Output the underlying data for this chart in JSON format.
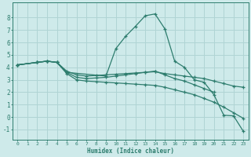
{
  "xlabel": "Humidex (Indice chaleur)",
  "xlim": [
    -0.5,
    23.5
  ],
  "ylim": [
    -1.8,
    9.2
  ],
  "yticks": [
    -1,
    0,
    1,
    2,
    3,
    4,
    5,
    6,
    7,
    8
  ],
  "xticks": [
    0,
    1,
    2,
    3,
    4,
    5,
    6,
    7,
    8,
    9,
    10,
    11,
    12,
    13,
    14,
    15,
    16,
    17,
    18,
    19,
    20,
    21,
    22,
    23
  ],
  "background_color": "#ceeaea",
  "grid_color": "#b0d4d4",
  "line_color": "#2e7d6e",
  "lines": [
    {
      "x": [
        0,
        2,
        3,
        4,
        5,
        9,
        10,
        11,
        12,
        13,
        14,
        15,
        16,
        17,
        18,
        19,
        20,
        21,
        22,
        23
      ],
      "y": [
        4.2,
        4.4,
        4.5,
        4.4,
        3.6,
        3.3,
        5.5,
        6.5,
        7.3,
        8.15,
        8.3,
        7.1,
        4.5,
        4.0,
        3.0,
        2.8,
        1.8,
        0.15,
        0.1,
        -1.15
      ]
    },
    {
      "x": [
        0,
        2,
        3,
        4,
        5,
        6,
        7,
        8,
        9,
        10,
        11,
        12,
        13,
        14,
        15,
        16,
        17,
        18,
        19,
        20,
        21,
        22,
        23
      ],
      "y": [
        4.2,
        4.4,
        4.5,
        4.4,
        3.7,
        3.4,
        3.3,
        3.35,
        3.4,
        3.45,
        3.5,
        3.55,
        3.6,
        3.65,
        3.5,
        3.4,
        3.3,
        3.2,
        3.1,
        2.9,
        2.7,
        2.5,
        2.4
      ]
    },
    {
      "x": [
        0,
        2,
        3,
        4,
        5,
        6,
        7,
        8,
        9,
        10,
        11,
        12,
        13,
        14,
        15,
        16,
        17,
        18,
        19,
        20
      ],
      "y": [
        4.2,
        4.4,
        4.5,
        4.4,
        3.6,
        3.2,
        3.1,
        3.15,
        3.2,
        3.3,
        3.4,
        3.5,
        3.6,
        3.7,
        3.4,
        3.1,
        2.9,
        2.6,
        2.3,
        2.0
      ]
    },
    {
      "x": [
        0,
        2,
        3,
        4,
        5,
        6,
        7,
        8,
        9,
        10,
        11,
        12,
        13,
        14,
        15,
        16,
        17,
        18,
        19,
        20,
        21,
        22,
        23
      ],
      "y": [
        4.2,
        4.4,
        4.5,
        4.4,
        3.5,
        3.0,
        2.9,
        2.85,
        2.8,
        2.75,
        2.7,
        2.65,
        2.6,
        2.55,
        2.4,
        2.2,
        2.0,
        1.8,
        1.5,
        1.2,
        0.8,
        0.35,
        -0.1
      ]
    }
  ]
}
